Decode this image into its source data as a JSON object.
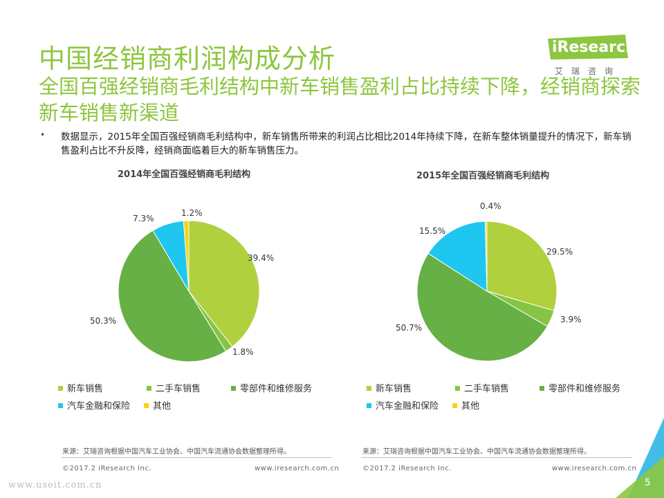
{
  "header": {
    "title": "中国经销商利润构成分析",
    "subtitle": "全国百强经销商毛利结构中新车销售盈利占比持续下降，经销商探索新车销售新渠道"
  },
  "logo": {
    "brand": "iResearch",
    "chinese": "艾瑞咨询"
  },
  "description": {
    "bullet": "•",
    "text": "数据显示，2015年全国百强经销商毛利结构中，新车销售所带来的利润占比相比2014年持续下降，在新车整体销量提升的情况下，新车销售盈利占比不升反降，经销商面临着巨大的新车销售压力。"
  },
  "colors": {
    "accent": "#8dc63f",
    "new_car": "#b1d03e",
    "used_car": "#86c443",
    "parts": "#66b045",
    "finance": "#1fc6ef",
    "other": "#f7d216",
    "deco_blue": "#44bde6",
    "deco_green": "#8dc63f"
  },
  "chart_data": [
    {
      "type": "pie",
      "title": "2014年全国百强经销商毛利结构",
      "categories": [
        "新车销售",
        "二手车销售",
        "零部件和维修服务",
        "汽车金融和保险",
        "其他"
      ],
      "values": [
        39.4,
        1.8,
        50.3,
        7.3,
        1.2
      ],
      "labels": [
        "39.4%",
        "1.8%",
        "50.3%",
        "7.3%",
        "1.2%"
      ],
      "legend": [
        "新车销售",
        "二手车销售",
        "零部件和维修服务",
        "汽车金融和保险",
        "其他"
      ]
    },
    {
      "type": "pie",
      "title": "2015年全国百强经销商毛利结构",
      "categories": [
        "新车销售",
        "二手车销售",
        "零部件和维修服务",
        "汽车金融和保险",
        "其他"
      ],
      "values": [
        29.5,
        3.9,
        50.7,
        15.5,
        0.4
      ],
      "labels": [
        "29.5%",
        "3.9%",
        "50.7%",
        "15.5%",
        "0.4%"
      ],
      "legend": [
        "新车销售",
        "二手车销售",
        "零部件和维修服务",
        "汽车金融和保险",
        "其他"
      ]
    }
  ],
  "sources": {
    "left": "来源：艾瑞咨询根据中国汽车工业协会、中国汽车流通协会数据整理所得。",
    "right": "来源：艾瑞咨询根据中国汽车工业协会、中国汽车流通协会数据整理所得。"
  },
  "footer": {
    "copyright_left": "©2017.2 iResearch Inc.",
    "url_left": "www.iresearch.com.cn",
    "copyright_right": "©2017.2 iResearch Inc.",
    "url_right": "www.iresearch.com.cn"
  },
  "watermark": "www.useit.com.cn",
  "page_number": "5"
}
